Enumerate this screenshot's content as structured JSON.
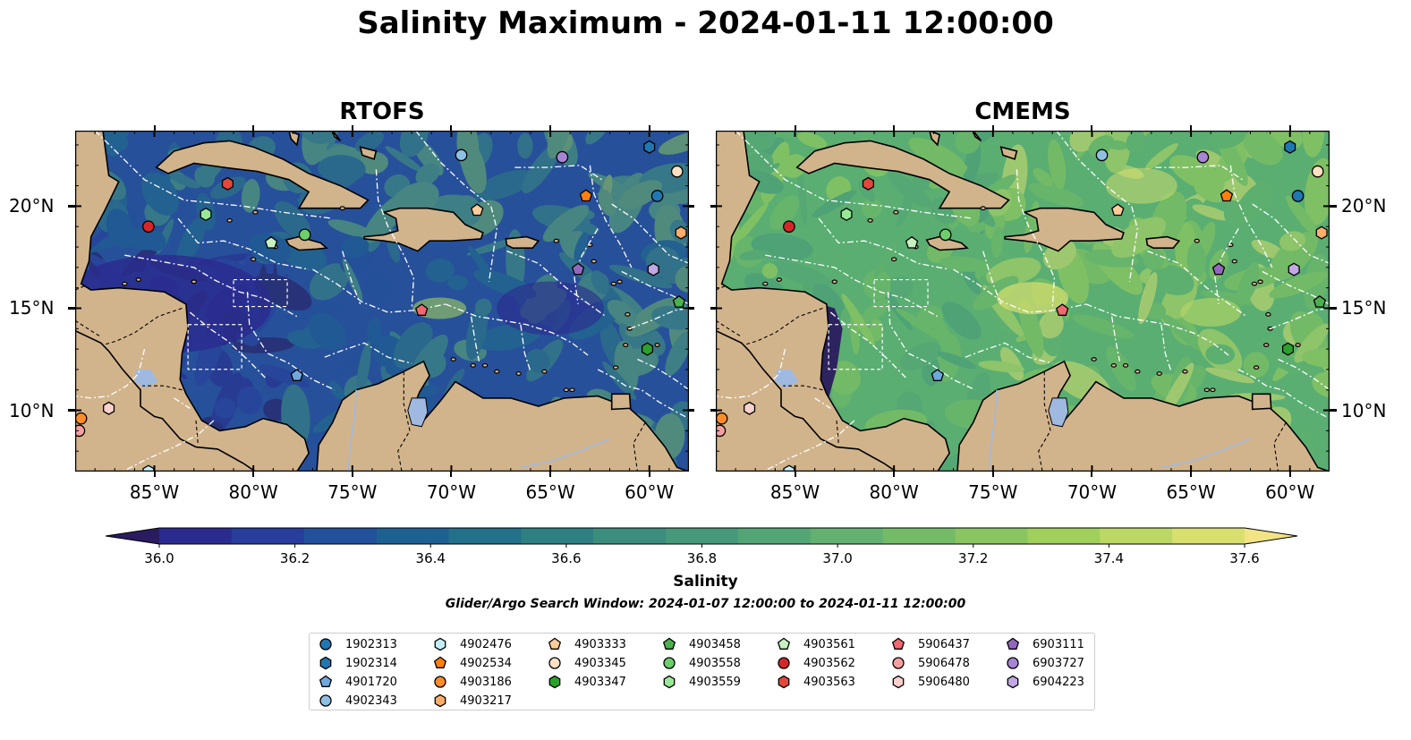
{
  "title": "Salinity Maximum - 2024-01-11 12:00:00",
  "panels": [
    {
      "title": "RTOFS"
    },
    {
      "title": "CMEMS"
    }
  ],
  "axes": {
    "x_ticks": [
      "85°W",
      "80°W",
      "75°W",
      "70°W",
      "65°W",
      "60°W"
    ],
    "y_ticks": [
      "20°N",
      "15°N",
      "10°N"
    ],
    "lon_range": [
      -89,
      -58
    ],
    "lat_range": [
      7,
      23.7
    ]
  },
  "colorbar": {
    "label": "Salinity",
    "ticks": [
      "36.0",
      "36.2",
      "36.4",
      "36.6",
      "36.8",
      "37.0",
      "37.2",
      "37.4",
      "37.6"
    ],
    "min": 35.9,
    "max": 37.7,
    "colors": [
      "#2a1b5e",
      "#2b2a8f",
      "#283d9c",
      "#23509a",
      "#1d6191",
      "#227089",
      "#2e7f82",
      "#3b8d7d",
      "#46997a",
      "#53a576",
      "#62b170",
      "#74bb67",
      "#89c560",
      "#a0cf5c",
      "#bbd864",
      "#d8df6f",
      "#f2e484"
    ]
  },
  "search_window": "Glider/Argo Search Window: 2024-01-07 12:00:00 to 2024-01-11 12:00:00",
  "colors": {
    "land": "#d2b48c",
    "lake": "#a0b9e0",
    "rtofs_base": "#27509a",
    "cmems_base": "#5aae72"
  },
  "floats": [
    {
      "id": "1902313",
      "marker": "circle",
      "color": "#1f77b4",
      "lon": -59.6,
      "lat": 20.5
    },
    {
      "id": "1902314",
      "marker": "hexagon",
      "color": "#1f77b4",
      "lon": -60.0,
      "lat": 22.9
    },
    {
      "id": "4901720",
      "marker": "pentagon",
      "color": "#6fa8dc",
      "lon": -77.8,
      "lat": 11.7
    },
    {
      "id": "4902343",
      "marker": "circle",
      "color": "#8ec0e4",
      "lon": -69.5,
      "lat": 22.5
    },
    {
      "id": "4902476",
      "marker": "hexagon",
      "color": "#c3eef7",
      "lon": -85.3,
      "lat": 7.0
    },
    {
      "id": "4902534",
      "marker": "pentagon",
      "color": "#ff7f0e",
      "lon": -63.2,
      "lat": 20.5
    },
    {
      "id": "4903186",
      "marker": "circle",
      "color": "#ff8c2a",
      "lon": -88.7,
      "lat": 9.6
    },
    {
      "id": "4903217",
      "marker": "hexagon",
      "color": "#ffad6b",
      "lon": -58.4,
      "lat": 18.7
    },
    {
      "id": "4903333",
      "marker": "pentagon",
      "color": "#ffcc99",
      "lon": -68.7,
      "lat": 19.8
    },
    {
      "id": "4903345",
      "marker": "circle",
      "color": "#ffe0c2",
      "lon": -58.6,
      "lat": 21.7
    },
    {
      "id": "4903347",
      "marker": "hexagon",
      "color": "#2ca02c",
      "lon": -60.1,
      "lat": 13.0
    },
    {
      "id": "4903458",
      "marker": "pentagon",
      "color": "#4caf50",
      "lon": -58.5,
      "lat": 15.3
    },
    {
      "id": "4903558",
      "marker": "circle",
      "color": "#6ccf6c",
      "lon": -77.4,
      "lat": 18.6
    },
    {
      "id": "4903559",
      "marker": "hexagon",
      "color": "#98e898",
      "lon": -82.4,
      "lat": 19.6
    },
    {
      "id": "4903561",
      "marker": "pentagon",
      "color": "#c8f0c0",
      "lon": -79.1,
      "lat": 18.2
    },
    {
      "id": "4903562",
      "marker": "circle",
      "color": "#d62728",
      "lon": -85.3,
      "lat": 19.0
    },
    {
      "id": "4903563",
      "marker": "hexagon",
      "color": "#e3473b",
      "lon": -81.3,
      "lat": 21.1
    },
    {
      "id": "5906437",
      "marker": "pentagon",
      "color": "#f06870",
      "lon": -71.5,
      "lat": 14.9
    },
    {
      "id": "5906478",
      "marker": "circle",
      "color": "#f4a0a0",
      "lon": -88.8,
      "lat": 9.0
    },
    {
      "id": "5906480",
      "marker": "hexagon",
      "color": "#fbd0cd",
      "lon": -87.3,
      "lat": 10.1
    },
    {
      "id": "6903111",
      "marker": "pentagon",
      "color": "#9467bd",
      "lon": -63.6,
      "lat": 16.9
    },
    {
      "id": "6903727",
      "marker": "circle",
      "color": "#a884d4",
      "lon": -64.4,
      "lat": 22.4
    },
    {
      "id": "6904223",
      "marker": "hexagon",
      "color": "#c1a7e3",
      "lon": -59.8,
      "lat": 16.9
    }
  ]
}
